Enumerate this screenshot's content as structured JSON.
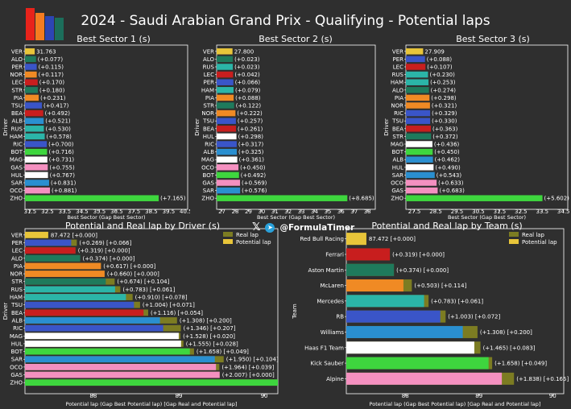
{
  "page": {
    "title": "2024 - Saudi Arabian Grand Prix - Qualifying - Potential laps",
    "watermark": "@FormulaTimer",
    "logo_colors": [
      "#e8231b",
      "#f57c20",
      "#2d45b4",
      "#1c6e5b"
    ]
  },
  "chart_data": [
    {
      "id": "sector1",
      "type": "bar",
      "orientation": "horizontal",
      "title": "Best Sector 1 (s)",
      "xlabel": "Best Sector (Gap Best Sector)",
      "ylabel": "Driver",
      "xlim": [
        31.2,
        40.6
      ],
      "xticks": [
        31.5,
        32.5,
        33.5,
        34.5,
        35.5,
        36.5,
        37.5,
        38.5,
        39.5,
        40.5
      ],
      "xtick_labels": [
        "31.5",
        "32.5",
        "33.5",
        "34.5",
        "35.5",
        "36.5",
        "37.5",
        "38.5",
        "39.5",
        "40.5"
      ],
      "categories": [
        "VER",
        "ALO",
        "PER",
        "NOR",
        "LEC",
        "STR",
        "PIA",
        "TSU",
        "BEA",
        "ALB",
        "RUS",
        "HAM",
        "RIC",
        "BOT",
        "MAG",
        "GAS",
        "HUL",
        "SAR",
        "OCO",
        "ZHO"
      ],
      "values": [
        31.763,
        31.84,
        31.878,
        31.88,
        31.933,
        31.943,
        31.994,
        32.18,
        32.255,
        32.284,
        32.293,
        32.341,
        32.463,
        32.479,
        32.494,
        32.518,
        32.53,
        32.594,
        32.644,
        38.928
      ],
      "labels": [
        "31.763",
        "(+0.077)",
        "(+0.115)",
        "(+0.117)",
        "(+0.170)",
        "(+0.180)",
        "(+0.231)",
        "(+0.417)",
        "(+0.492)",
        "(+0.521)",
        "(+0.530)",
        "(+0.578)",
        "(+0.700)",
        "(+0.716)",
        "(+0.731)",
        "(+0.755)",
        "(+0.767)",
        "(+0.831)",
        "(+0.881)",
        "(+7.165)"
      ],
      "colors": [
        "#e8c53a",
        "#1f7a5c",
        "#3a55c8",
        "#f08a24",
        "#c81e1e",
        "#1f7a5c",
        "#f08a24",
        "#3a55c8",
        "#c81e1e",
        "#2a8fd0",
        "#2bb5a8",
        "#2bb5a8",
        "#3a55c8",
        "#3ed63e",
        "#ffffff",
        "#f490c0",
        "#ffffff",
        "#2a8fd0",
        "#f490c0",
        "#3ed63e"
      ]
    },
    {
      "id": "sector2",
      "type": "bar",
      "orientation": "horizontal",
      "title": "Best Sector 2 (s)",
      "xlabel": "Best Sector (Gap Best Sector)",
      "ylabel": "Driver",
      "xlim": [
        26.6,
        38.6
      ],
      "xticks": [
        27,
        28,
        29,
        30,
        31,
        32,
        33,
        34,
        35,
        36,
        37,
        38
      ],
      "xtick_labels": [
        "27",
        "28",
        "29",
        "30",
        "31",
        "32",
        "33",
        "34",
        "35",
        "36",
        "37",
        "38"
      ],
      "categories": [
        "VER",
        "ALO",
        "RUS",
        "LEC",
        "PER",
        "HAM",
        "PIA",
        "STR",
        "NOR",
        "TSU",
        "BEA",
        "HUL",
        "RIC",
        "ALB",
        "MAG",
        "OCO",
        "BOT",
        "GAS",
        "SAR",
        "ZHO"
      ],
      "values": [
        27.8,
        27.823,
        27.823,
        27.842,
        27.866,
        27.879,
        27.888,
        27.922,
        28.022,
        28.057,
        28.061,
        28.098,
        28.117,
        28.125,
        28.161,
        28.25,
        28.292,
        28.369,
        28.376,
        36.485
      ],
      "labels": [
        "27.800",
        "(+0.023)",
        "(+0.023)",
        "(+0.042)",
        "(+0.066)",
        "(+0.079)",
        "(+0.088)",
        "(+0.122)",
        "(+0.222)",
        "(+0.257)",
        "(+0.261)",
        "(+0.298)",
        "(+0.317)",
        "(+0.325)",
        "(+0.361)",
        "(+0.450)",
        "(+0.492)",
        "(+0.569)",
        "(+0.576)",
        "(+8.685)"
      ],
      "colors": [
        "#e8c53a",
        "#1f7a5c",
        "#2bb5a8",
        "#c81e1e",
        "#3a55c8",
        "#2bb5a8",
        "#f08a24",
        "#1f7a5c",
        "#f08a24",
        "#3a55c8",
        "#c81e1e",
        "#ffffff",
        "#3a55c8",
        "#2a8fd0",
        "#ffffff",
        "#f490c0",
        "#3ed63e",
        "#f490c0",
        "#2a8fd0",
        "#3ed63e"
      ]
    },
    {
      "id": "sector3",
      "type": "bar",
      "orientation": "horizontal",
      "title": "Best Sector 3 (s)",
      "xlabel": "Best Sector (Gap Best Sector)",
      "ylabel": "Driver",
      "xlim": [
        27.1,
        34.7
      ],
      "xticks": [
        27.5,
        28.5,
        29.5,
        30.5,
        31.5,
        32.5,
        33.5,
        34.5
      ],
      "xtick_labels": [
        "27.5",
        "28.5",
        "29.5",
        "30.5",
        "31.5",
        "32.5",
        "33.5",
        "34.5"
      ],
      "categories": [
        "VER",
        "PER",
        "LEC",
        "RUS",
        "HAM",
        "ALO",
        "PIA",
        "NOR",
        "RIC",
        "TSU",
        "BEA",
        "STR",
        "MAG",
        "BOT",
        "ALB",
        "HUL",
        "SAR",
        "OCO",
        "GAS",
        "ZHO"
      ],
      "values": [
        27.909,
        27.997,
        28.016,
        28.139,
        28.162,
        28.183,
        28.207,
        28.23,
        28.238,
        28.239,
        28.272,
        28.281,
        28.345,
        28.359,
        28.371,
        28.399,
        28.452,
        28.542,
        28.592,
        33.511
      ],
      "labels": [
        "27.909",
        "(+0.088)",
        "(+0.107)",
        "(+0.230)",
        "(+0.253)",
        "(+0.274)",
        "(+0.298)",
        "(+0.321)",
        "(+0.329)",
        "(+0.330)",
        "(+0.363)",
        "(+0.372)",
        "(+0.436)",
        "(+0.450)",
        "(+0.462)",
        "(+0.490)",
        "(+0.543)",
        "(+0.633)",
        "(+0.683)",
        "(+5.602)"
      ],
      "colors": [
        "#e8c53a",
        "#3a55c8",
        "#c81e1e",
        "#2bb5a8",
        "#2bb5a8",
        "#1f7a5c",
        "#f08a24",
        "#f08a24",
        "#3a55c8",
        "#3a55c8",
        "#c81e1e",
        "#1f7a5c",
        "#ffffff",
        "#3ed63e",
        "#2a8fd0",
        "#ffffff",
        "#2a8fd0",
        "#f490c0",
        "#f490c0",
        "#3ed63e"
      ]
    },
    {
      "id": "drivers",
      "type": "bar",
      "orientation": "horizontal",
      "stacked": true,
      "title": "Potential and Real lap by Driver (s)",
      "xlabel": "Potential lap (Gap Best Potential lap) [Gap Real and Potential lap]",
      "ylabel": "Driver",
      "xlim": [
        87.2,
        90.16
      ],
      "xticks": [
        88,
        89,
        90
      ],
      "xtick_labels": [
        "88",
        "89",
        "90"
      ],
      "legend": {
        "position": "top-right",
        "entries": [
          {
            "name": "Real lap",
            "color": "#7c7c22"
          },
          {
            "name": "Potential lap",
            "color": "#e8c53a"
          }
        ]
      },
      "categories": [
        "VER",
        "PER",
        "LEC",
        "ALO",
        "PIA",
        "NOR",
        "STR",
        "RUS",
        "HAM",
        "TSU",
        "BEA",
        "ALB",
        "RIC",
        "MAG",
        "HUL",
        "BOT",
        "SAR",
        "OCO",
        "GAS",
        "ZHO"
      ],
      "potential": [
        87.472,
        87.741,
        87.791,
        87.846,
        88.089,
        88.132,
        88.146,
        88.255,
        88.382,
        88.476,
        88.588,
        88.78,
        88.818,
        89.0,
        89.027,
        89.13,
        89.422,
        89.436,
        89.479,
        90.2
      ],
      "real_gap": [
        0.0,
        0.066,
        0.0,
        0.0,
        0.0,
        0.0,
        0.104,
        0.061,
        0.078,
        0.071,
        0.054,
        0.2,
        0.207,
        0.02,
        0.028,
        0.049,
        0.104,
        0.039,
        0.0,
        0.0
      ],
      "labels": [
        "87.472 [+0.000]",
        "(+0.269) [+0.066]",
        "(+0.319) [+0.000]",
        "(+0.374) [+0.000]",
        "(+0.617) [+0.000]",
        "(+0.660) [+0.000]",
        "(+0.674) [+0.104]",
        "(+0.783) [+0.061]",
        "(+0.910) [+0.078]",
        "(+1.004) [+0.071]",
        "(+1.116) [+0.054]",
        "(+1.308) [+0.200]",
        "(+1.346) [+0.207]",
        "(+1.528) [+0.020]",
        "(+1.555) [+0.028]",
        "(+1.658) [+0.049]",
        "(+1.950) [+0.104]",
        "(+1.964) [+0.039]",
        "(+2.007) [+0.000]",
        ""
      ],
      "colors": [
        "#e8c53a",
        "#3a55c8",
        "#c81e1e",
        "#1f7a5c",
        "#f08a24",
        "#f08a24",
        "#1f7a5c",
        "#2bb5a8",
        "#2bb5a8",
        "#3a55c8",
        "#c81e1e",
        "#2a8fd0",
        "#3a55c8",
        "#ffffff",
        "#ffffff",
        "#3ed63e",
        "#2a8fd0",
        "#f490c0",
        "#f490c0",
        "#3ed63e"
      ]
    },
    {
      "id": "teams",
      "type": "bar",
      "orientation": "horizontal",
      "stacked": true,
      "title": "Potential and Real lap by Team (s)",
      "xlabel": "Potential lap (Gap Best Potential lap) [Gap Real and Potential lap]",
      "ylabel": "Team",
      "xlim": [
        87.2,
        90.15
      ],
      "xticks": [
        88,
        89,
        90
      ],
      "xtick_labels": [
        "88",
        "89",
        "90"
      ],
      "legend": {
        "position": "top-right",
        "entries": [
          {
            "name": "Real lap",
            "color": "#7c7c22"
          },
          {
            "name": "Potential lap",
            "color": "#e8c53a"
          }
        ]
      },
      "categories": [
        "Red Bull Racing",
        "Ferrari",
        "Aston Martin",
        "McLaren",
        "Mercedes",
        "RB",
        "Williams",
        "Haas F1 Team",
        "Kick Sauber",
        "Alpine"
      ],
      "potential": [
        87.472,
        87.791,
        87.846,
        87.975,
        88.255,
        88.475,
        88.78,
        88.937,
        89.13,
        89.31
      ],
      "real_gap": [
        0.0,
        0.0,
        0.0,
        0.114,
        0.061,
        0.072,
        0.2,
        0.083,
        0.049,
        0.165
      ],
      "labels": [
        "87.472 [+0.000]",
        "(+0.319) [+0.000]",
        "(+0.374) [+0.000]",
        "(+0.503) [+0.114]",
        "(+0.783) [+0.061]",
        "(+1.003) [+0.072]",
        "(+1.308) [+0.200]",
        "(+1.465) [+0.083]",
        "(+1.658) [+0.049]",
        "(+1.838) [+0.165]"
      ],
      "colors": [
        "#e8c53a",
        "#c81e1e",
        "#1f7a5c",
        "#f08a24",
        "#2bb5a8",
        "#3a55c8",
        "#2a8fd0",
        "#ffffff",
        "#3ed63e",
        "#f490c0"
      ]
    }
  ]
}
